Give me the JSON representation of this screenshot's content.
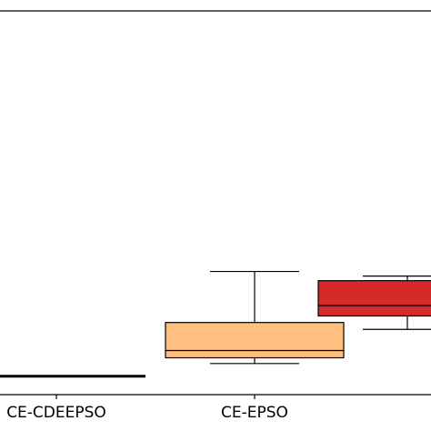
{
  "chart_data": {
    "type": "box",
    "title": "",
    "xlabel": "",
    "ylabel": "",
    "grid": false,
    "ylim": [
      0,
      100
    ],
    "categories": [
      "CE-CDEEPSO",
      "CE-EPSO",
      ""
    ],
    "boxes": [
      {
        "category": "CE-CDEEPSO",
        "whisker_low": 4.8,
        "q1": 4.8,
        "median": 4.8,
        "q3": 4.8,
        "whisker_high": 4.8,
        "color": "#000000"
      },
      {
        "category": "CE-EPSO",
        "whisker_low": 8.1,
        "q1": 9.6,
        "median": 11.5,
        "q3": 18.8,
        "whisker_high": 32.1,
        "color": "#ffc07f"
      },
      {
        "category": "",
        "whisker_low": 17.0,
        "q1": 20.5,
        "median": 23.2,
        "q3": 29.7,
        "whisker_high": 30.9,
        "color": "#d62a2a"
      }
    ]
  }
}
